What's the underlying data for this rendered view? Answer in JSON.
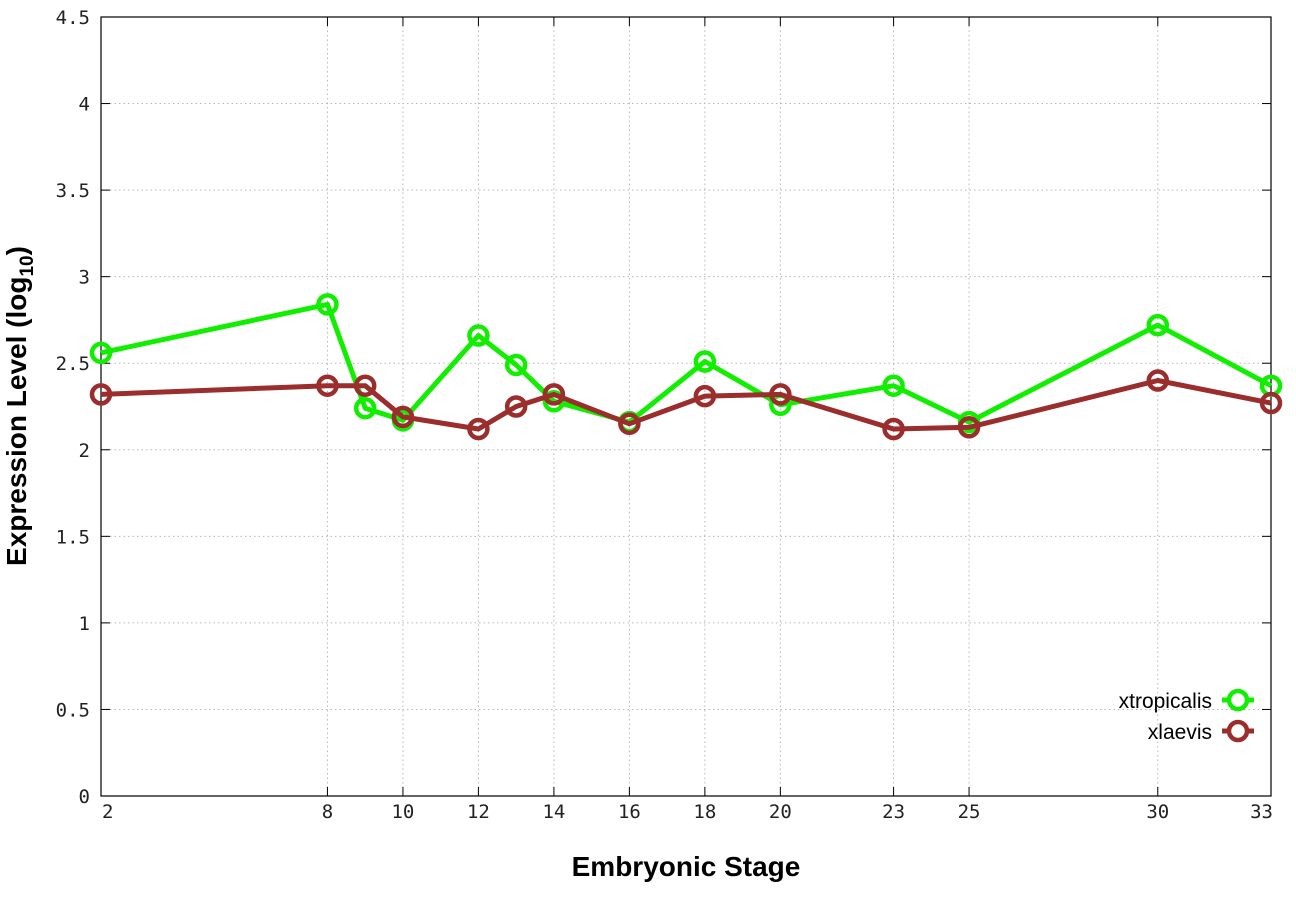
{
  "chart_data": {
    "type": "line",
    "xlabel": "Embryonic Stage",
    "ylabel": "Expression Level (log10)",
    "ylabel_main": "Expression Level (log",
    "ylabel_sub": "10",
    "ylabel_end": ")",
    "xlim": [
      2,
      33
    ],
    "ylim": [
      0,
      4.5
    ],
    "x_ticks": [
      2,
      8,
      10,
      12,
      14,
      16,
      18,
      20,
      23,
      25,
      30,
      33
    ],
    "y_ticks": [
      0,
      0.5,
      1,
      1.5,
      2,
      2.5,
      3,
      3.5,
      4,
      4.5
    ],
    "y_tick_labels": [
      "0",
      "0.5",
      "1",
      "1.5",
      "2",
      "2.5",
      "3",
      "3.5",
      "4",
      "4.5"
    ],
    "grid": true,
    "legend_position": "bottom-right",
    "series": [
      {
        "name": "xtropicalis",
        "color": "#11ee00",
        "x": [
          2,
          8,
          9,
          10,
          12,
          13,
          14,
          16,
          18,
          20,
          23,
          25,
          30,
          33
        ],
        "y": [
          2.56,
          2.84,
          2.24,
          2.17,
          2.66,
          2.49,
          2.28,
          2.16,
          2.51,
          2.26,
          2.37,
          2.16,
          2.72,
          2.37
        ]
      },
      {
        "name": "xlaevis",
        "color": "#9b2d2d",
        "x": [
          2,
          8,
          9,
          10,
          12,
          13,
          14,
          16,
          18,
          20,
          23,
          25,
          30,
          33
        ],
        "y": [
          2.32,
          2.37,
          2.37,
          2.19,
          2.12,
          2.25,
          2.32,
          2.15,
          2.31,
          2.32,
          2.12,
          2.13,
          2.4,
          2.27
        ]
      }
    ]
  }
}
